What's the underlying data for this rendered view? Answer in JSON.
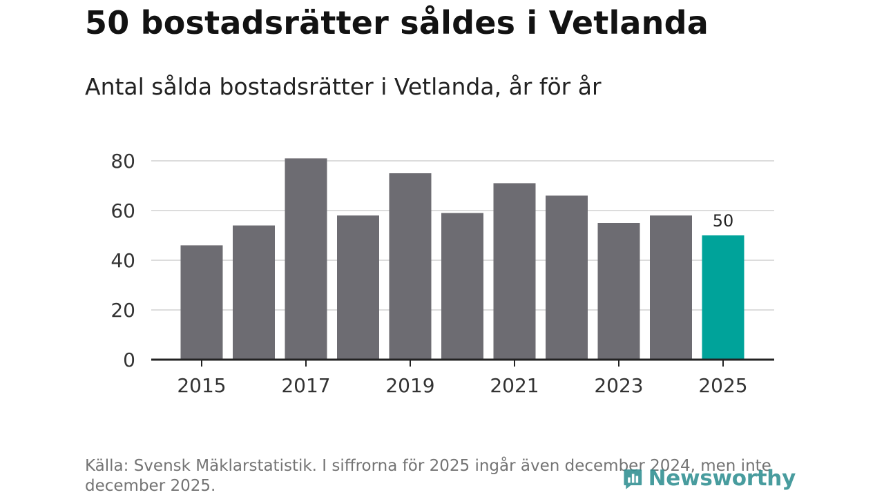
{
  "chart_data": {
    "type": "bar",
    "title": "50 bostadsrätter såldes i Vetlanda",
    "subtitle": "Antal sålda bostadsrätter i Vetlanda, år för år",
    "categories": [
      "2015",
      "2016",
      "2017",
      "2018",
      "2019",
      "2020",
      "2021",
      "2022",
      "2023",
      "2024",
      "2025"
    ],
    "values": [
      46,
      54,
      81,
      58,
      75,
      59,
      71,
      66,
      55,
      58,
      50
    ],
    "highlight_index": 10,
    "highlight_label": "50",
    "x_tick_labels": [
      "2015",
      "2017",
      "2019",
      "2021",
      "2023",
      "2025"
    ],
    "y_ticks": [
      0,
      20,
      40,
      60,
      80
    ],
    "y_tick_labels": [
      "0",
      "20",
      "40",
      "60",
      "80"
    ],
    "ylim": [
      0,
      85
    ],
    "xlabel": "",
    "ylabel": "",
    "grid": true,
    "colors": {
      "bar": "#6d6c72",
      "highlight": "#00a39a",
      "grid": "#dcdcdc",
      "axis": "#222222"
    }
  },
  "source": "Källa: Svensk Mäklarstatistik. I siffrorna för 2025 ingår även december 2024, men inte december 2025.",
  "brand": {
    "name": "Newsworthy",
    "color": "#2f8f91"
  }
}
